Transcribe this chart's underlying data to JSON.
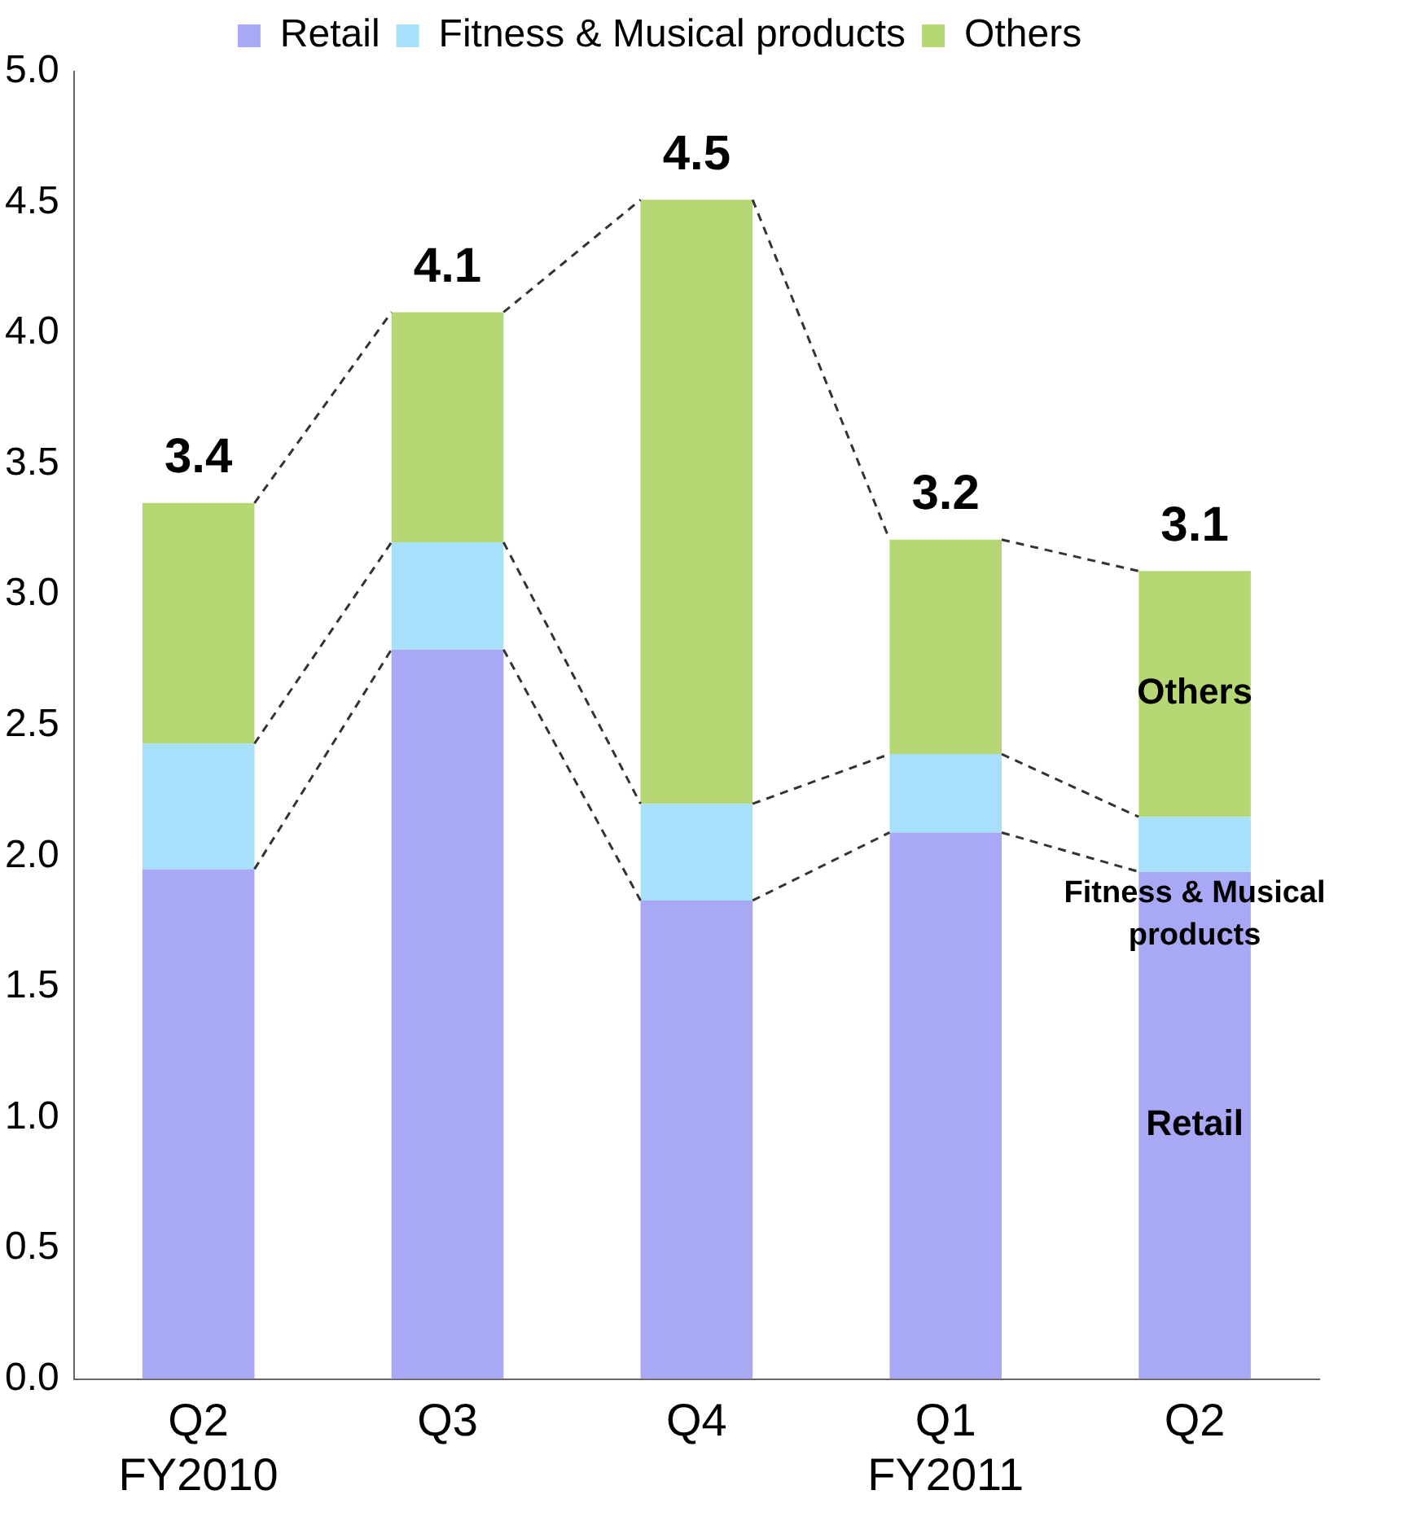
{
  "chart_data": {
    "type": "bar",
    "stacked": true,
    "categories": [
      "Q2\nFY2010",
      "Q3",
      "Q4",
      "Q1\nFY2011",
      "Q2"
    ],
    "series": [
      {
        "name": "Retail",
        "color": "#a8a8f4",
        "values": [
          1.95,
          2.79,
          1.83,
          2.09,
          1.94
        ]
      },
      {
        "name": "Fitness & Musical products",
        "color": "#a6e0fa",
        "values": [
          0.48,
          0.41,
          0.37,
          0.3,
          0.21
        ]
      },
      {
        "name": "Others",
        "color": "#b6d874",
        "values": [
          0.92,
          0.88,
          2.31,
          0.82,
          0.94
        ]
      }
    ],
    "totals": [
      "3.4",
      "4.1",
      "4.5",
      "3.2",
      "3.1"
    ],
    "annotations": [
      "Others",
      {
        "text": "Fitness & Musical products",
        "y": 2.15
      },
      "Retail"
    ],
    "ylim": [
      0,
      5
    ],
    "yticks": [
      {
        "value": 0,
        "label": "0.0"
      },
      {
        "value": 0.5,
        "label": "0.5"
      },
      {
        "value": 1,
        "label": "1.0"
      },
      {
        "value": 1.5,
        "label": "1.5"
      },
      {
        "value": 2,
        "label": "2.0"
      },
      {
        "value": 2.5,
        "label": "2.5"
      },
      {
        "value": 3,
        "label": "3.0"
      },
      {
        "value": 3.5,
        "label": "3.5"
      },
      {
        "value": 4,
        "label": "4.0"
      },
      {
        "value": 4.5,
        "label": "4.5"
      },
      {
        "value": 5,
        "label": "5.0"
      }
    ],
    "grid": false,
    "legend": "top"
  }
}
